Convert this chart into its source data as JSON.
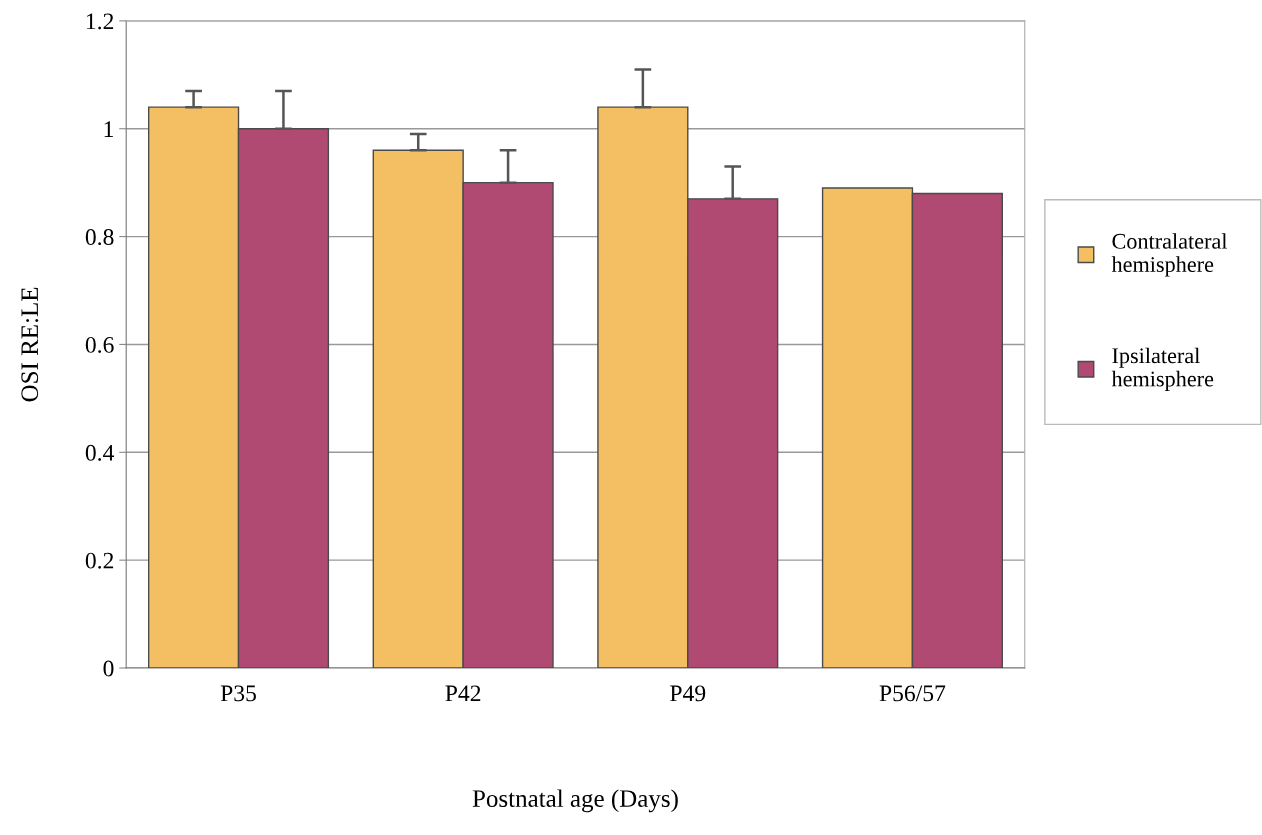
{
  "chart_data": {
    "type": "bar",
    "xlabel": "Postnatal age (Days)",
    "ylabel": "OSI RE:LE",
    "categories": [
      "P35",
      "P42",
      "P49",
      "P56/57"
    ],
    "series": [
      {
        "name": "Contralateral\nhemisphere",
        "color": "#f3bf62",
        "values": [
          1.04,
          0.96,
          1.04,
          0.89
        ],
        "errors": [
          [
            1.04,
            1.07
          ],
          [
            0.96,
            0.99
          ],
          [
            1.04,
            1.11
          ],
          null
        ]
      },
      {
        "name": "Ipsilateral\nhemisphere",
        "color": "#b04a72",
        "values": [
          1.0,
          0.9,
          0.87,
          0.88
        ],
        "errors": [
          [
            1.0,
            1.07
          ],
          [
            0.9,
            0.96
          ],
          [
            0.87,
            0.93
          ],
          null
        ]
      }
    ],
    "ylim": [
      0,
      1.2
    ],
    "yticks": [
      0,
      0.2,
      0.4,
      0.6,
      0.8,
      1,
      1.2
    ],
    "grid": "y",
    "legend": "right"
  }
}
